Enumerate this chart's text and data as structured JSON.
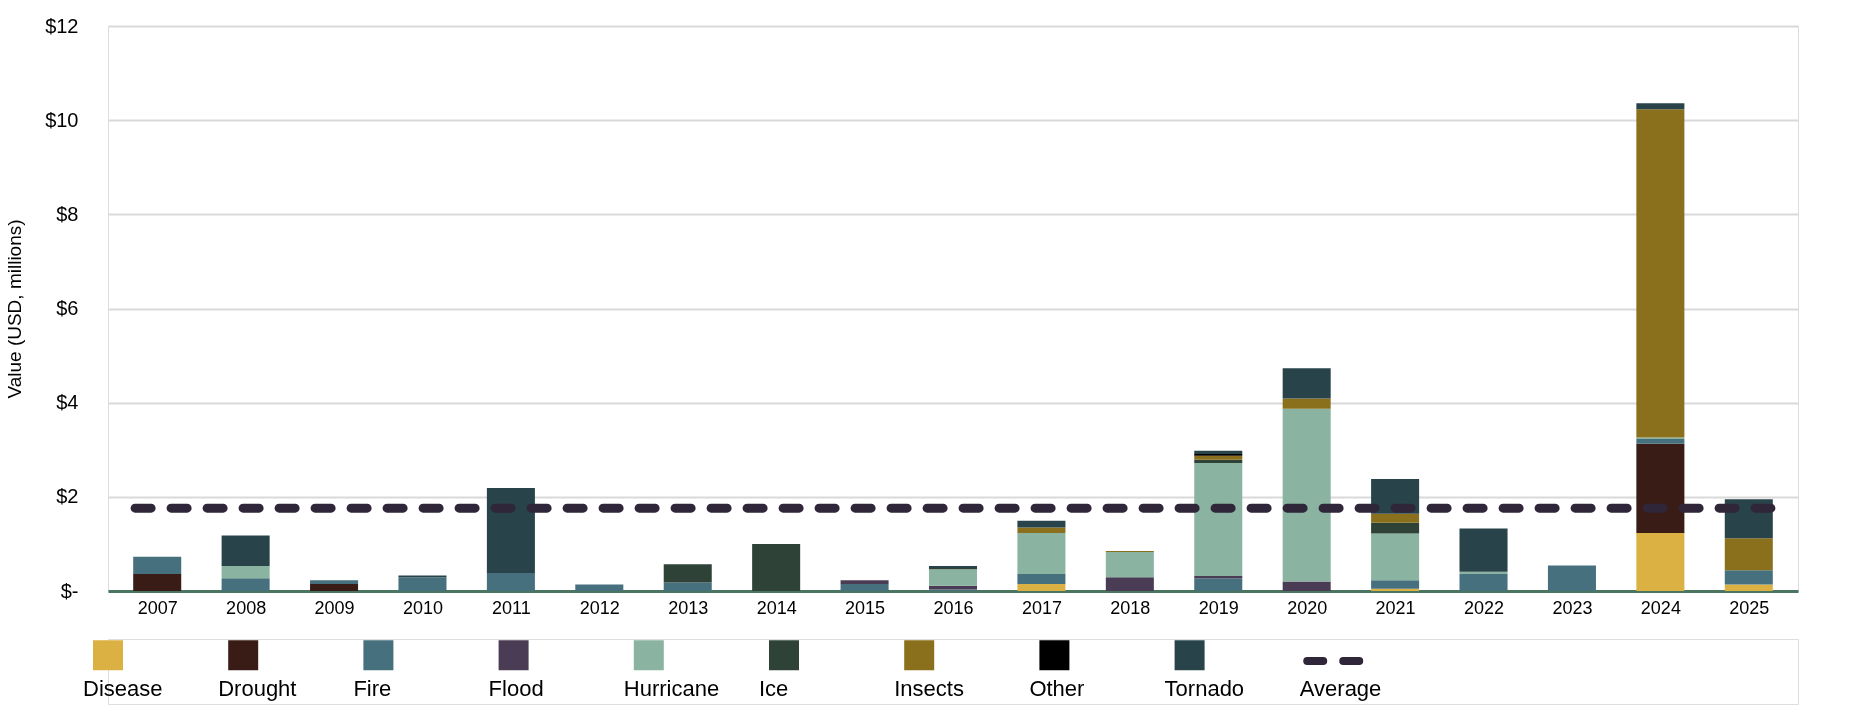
{
  "chart_data": {
    "type": "bar",
    "stacked": true,
    "ylabel": "Value (USD, millions)",
    "categories": [
      "2007",
      "2008",
      "2009",
      "2010",
      "2011",
      "2012",
      "2013",
      "2014",
      "2015",
      "2016",
      "2017",
      "2018",
      "2019",
      "2020",
      "2021",
      "2022",
      "2023",
      "2024",
      "2025"
    ],
    "series": [
      {
        "name": "Disease",
        "color": "#dbb144",
        "values": [
          null,
          null,
          null,
          null,
          null,
          null,
          null,
          null,
          null,
          null,
          0.15,
          null,
          null,
          null,
          0.05,
          null,
          null,
          1.23,
          0.14
        ]
      },
      {
        "name": "Drought",
        "color": "#3a1c17",
        "values": [
          0.36,
          null,
          0.15,
          null,
          null,
          null,
          null,
          null,
          null,
          null,
          null,
          null,
          null,
          null,
          null,
          null,
          null,
          1.9,
          null
        ]
      },
      {
        "name": "Fire",
        "color": "#46707d",
        "values": [
          0.37,
          0.27,
          0.08,
          0.29,
          0.38,
          0.14,
          0.18,
          null,
          0.15,
          0.03,
          0.21,
          null,
          0.27,
          null,
          0.18,
          0.36,
          0.54,
          0.1,
          0.3
        ]
      },
      {
        "name": "Flood",
        "color": "#4a3c55",
        "values": [
          null,
          null,
          null,
          null,
          null,
          null,
          null,
          null,
          0.08,
          0.08,
          null,
          0.29,
          0.05,
          0.2,
          null,
          null,
          null,
          null,
          null
        ]
      },
      {
        "name": "Hurricane",
        "color": "#8ab3a1",
        "values": [
          null,
          0.26,
          null,
          null,
          null,
          null,
          null,
          null,
          null,
          0.35,
          0.87,
          0.54,
          2.4,
          3.67,
          0.99,
          0.05,
          null,
          0.03,
          null
        ]
      },
      {
        "name": "Ice",
        "color": "#2e4238",
        "values": [
          null,
          null,
          null,
          null,
          null,
          null,
          0.39,
          1.0,
          null,
          0.03,
          null,
          null,
          0.07,
          null,
          0.23,
          null,
          null,
          null,
          null
        ]
      },
      {
        "name": "Insects",
        "color": "#8a701c",
        "values": [
          null,
          null,
          null,
          null,
          null,
          null,
          null,
          null,
          null,
          null,
          0.12,
          0.02,
          0.08,
          0.22,
          0.19,
          null,
          null,
          6.97,
          0.68
        ]
      },
      {
        "name": "Other",
        "color": "#000000",
        "values": [
          null,
          null,
          null,
          null,
          null,
          null,
          null,
          null,
          null,
          null,
          null,
          null,
          0.04,
          null,
          null,
          null,
          null,
          null,
          null
        ]
      },
      {
        "name": "Tornado",
        "color": "#28444a",
        "values": [
          null,
          0.65,
          null,
          0.04,
          1.81,
          null,
          null,
          null,
          null,
          0.04,
          0.14,
          null,
          0.07,
          0.64,
          0.74,
          0.92,
          null,
          0.13,
          0.83
        ]
      }
    ],
    "ylim": [
      0,
      12
    ],
    "yticks": [
      {
        "value": 0,
        "label": "$-"
      },
      {
        "value": 2,
        "label": "$2"
      },
      {
        "value": 4,
        "label": "$4"
      },
      {
        "value": 6,
        "label": "$6"
      },
      {
        "value": 8,
        "label": "$8"
      },
      {
        "value": 10,
        "label": "$10"
      },
      {
        "value": 12,
        "label": "$12"
      }
    ],
    "ref_lines": [
      {
        "axis": "y",
        "value": 1.76,
        "label": "Average",
        "color": "#30263a",
        "line_style": "dashed"
      }
    ],
    "grid": "y",
    "legend": "bottom"
  }
}
